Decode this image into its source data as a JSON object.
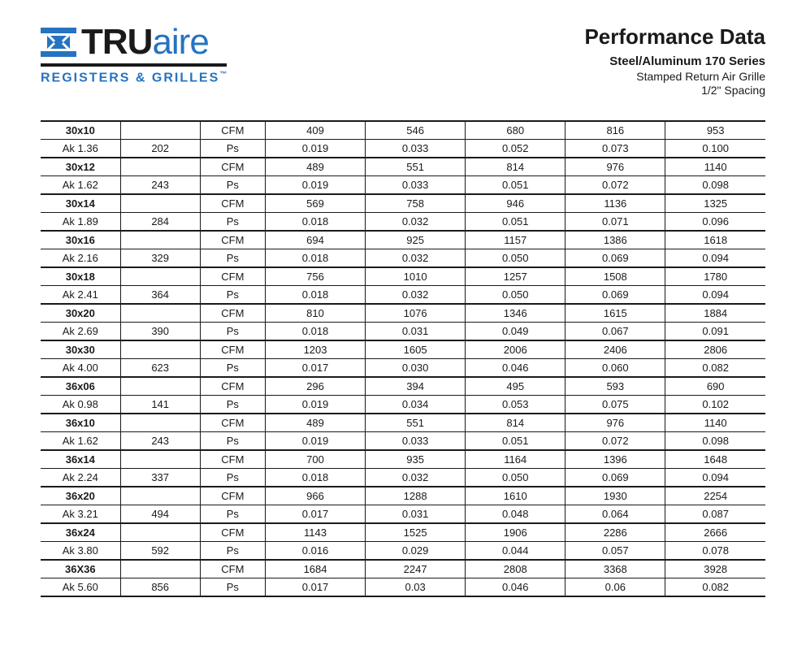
{
  "brand": {
    "name_part1": "TRU",
    "name_part2": "aire",
    "tagline": "REGISTERS & GRILLES",
    "tm": "™",
    "color_primary": "#2573c1",
    "color_dark": "#1a1a1a"
  },
  "header": {
    "title": "Performance Data",
    "subtitle_bold": "Steel/Aluminum 170 Series",
    "subtitle_line2": "Stamped Return Air Grille",
    "subtitle_line3": "1/2\" Spacing"
  },
  "table": {
    "metric_labels": {
      "cfm": "CFM",
      "ps": "Ps"
    },
    "rows": [
      {
        "size": "30x10",
        "ak": "Ak 1.36",
        "flow": "202",
        "cfm": [
          "409",
          "546",
          "680",
          "816",
          "953"
        ],
        "ps": [
          "0.019",
          "0.033",
          "0.052",
          "0.073",
          "0.100"
        ]
      },
      {
        "size": "30x12",
        "ak": "Ak 1.62",
        "flow": "243",
        "cfm": [
          "489",
          "551",
          "814",
          "976",
          "1140"
        ],
        "ps": [
          "0.019",
          "0.033",
          "0.051",
          "0.072",
          "0.098"
        ]
      },
      {
        "size": "30x14",
        "ak": "Ak 1.89",
        "flow": "284",
        "cfm": [
          "569",
          "758",
          "946",
          "1136",
          "1325"
        ],
        "ps": [
          "0.018",
          "0.032",
          "0.051",
          "0.071",
          "0.096"
        ]
      },
      {
        "size": "30x16",
        "ak": "Ak 2.16",
        "flow": "329",
        "cfm": [
          "694",
          "925",
          "1157",
          "1386",
          "1618"
        ],
        "ps": [
          "0.018",
          "0.032",
          "0.050",
          "0.069",
          "0.094"
        ]
      },
      {
        "size": "30x18",
        "ak": "Ak 2.41",
        "flow": "364",
        "cfm": [
          "756",
          "1010",
          "1257",
          "1508",
          "1780"
        ],
        "ps": [
          "0.018",
          "0.032",
          "0.050",
          "0.069",
          "0.094"
        ]
      },
      {
        "size": "30x20",
        "ak": "Ak 2.69",
        "flow": "390",
        "cfm": [
          "810",
          "1076",
          "1346",
          "1615",
          "1884"
        ],
        "ps": [
          "0.018",
          "0.031",
          "0.049",
          "0.067",
          "0.091"
        ]
      },
      {
        "size": "30x30",
        "ak": "Ak 4.00",
        "flow": "623",
        "cfm": [
          "1203",
          "1605",
          "2006",
          "2406",
          "2806"
        ],
        "ps": [
          "0.017",
          "0.030",
          "0.046",
          "0.060",
          "0.082"
        ]
      },
      {
        "size": "36x06",
        "ak": "Ak 0.98",
        "flow": "141",
        "cfm": [
          "296",
          "394",
          "495",
          "593",
          "690"
        ],
        "ps": [
          "0.019",
          "0.034",
          "0.053",
          "0.075",
          "0.102"
        ]
      },
      {
        "size": "36x10",
        "ak": "Ak 1.62",
        "flow": "243",
        "cfm": [
          "489",
          "551",
          "814",
          "976",
          "1140"
        ],
        "ps": [
          "0.019",
          "0.033",
          "0.051",
          "0.072",
          "0.098"
        ]
      },
      {
        "size": "36x14",
        "ak": "Ak 2.24",
        "flow": "337",
        "cfm": [
          "700",
          "935",
          "1164",
          "1396",
          "1648"
        ],
        "ps": [
          "0.018",
          "0.032",
          "0.050",
          "0.069",
          "0.094"
        ]
      },
      {
        "size": "36x20",
        "ak": "Ak 3.21",
        "flow": "494",
        "cfm": [
          "966",
          "1288",
          "1610",
          "1930",
          "2254"
        ],
        "ps": [
          "0.017",
          "0.031",
          "0.048",
          "0.064",
          "0.087"
        ]
      },
      {
        "size": "36x24",
        "ak": "Ak 3.80",
        "flow": "592",
        "cfm": [
          "1143",
          "1525",
          "1906",
          "2286",
          "2666"
        ],
        "ps": [
          "0.016",
          "0.029",
          "0.044",
          "0.057",
          "0.078"
        ]
      },
      {
        "size": "36X36",
        "ak": "Ak 5.60",
        "flow": "856",
        "cfm": [
          "1684",
          "2247",
          "2808",
          "3368",
          "3928"
        ],
        "ps": [
          "0.017",
          "0.03",
          "0.046",
          "0.06",
          "0.082"
        ]
      }
    ]
  },
  "style": {
    "border_color": "#1a1a1a",
    "font_size_body": 13,
    "font_size_title": 26
  }
}
